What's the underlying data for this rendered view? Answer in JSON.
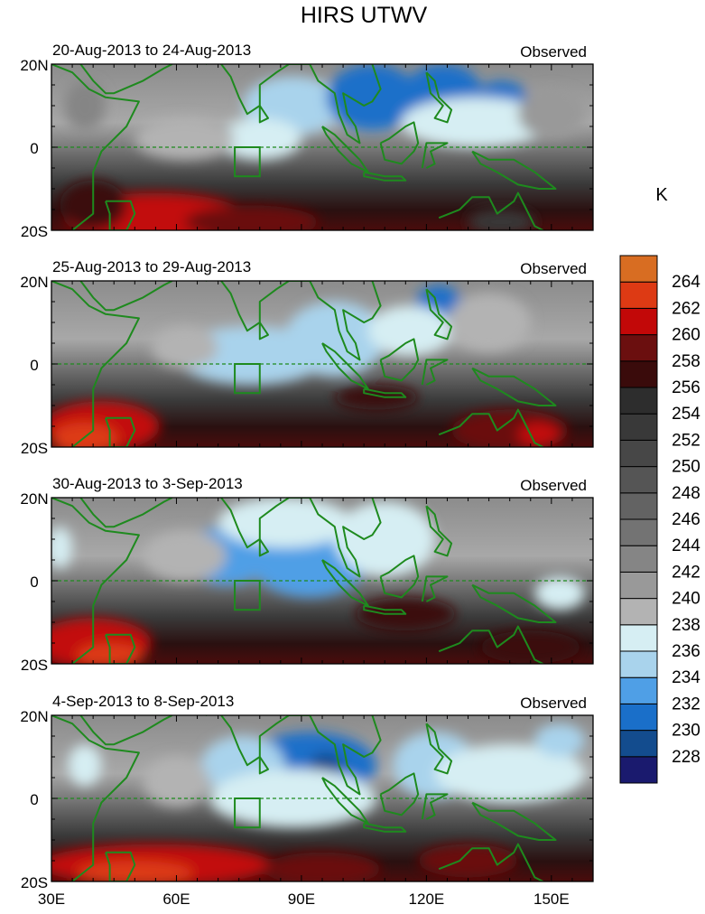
{
  "chart_data": {
    "type": "heatmap",
    "title": "HIRS UTWV",
    "units": "K",
    "panels": [
      {
        "period": "20-Aug-2013 to 24-Aug-2013",
        "label": "Observed",
        "blobs": [
          {
            "lon": 88,
            "lat": 10,
            "rx": 12,
            "ry": 7,
            "v": 234
          },
          {
            "lon": 107,
            "lat": 12,
            "rx": 11,
            "ry": 8,
            "v": 231
          },
          {
            "lon": 124,
            "lat": 14,
            "rx": 9,
            "ry": 6,
            "v": 230
          },
          {
            "lon": 138,
            "lat": 12,
            "rx": 6,
            "ry": 4,
            "v": 230
          },
          {
            "lon": 80,
            "lat": 2,
            "rx": 10,
            "ry": 5,
            "v": 236
          },
          {
            "lon": 62,
            "lat": 2,
            "rx": 12,
            "ry": 5,
            "v": 238
          },
          {
            "lon": 132,
            "lat": 6,
            "rx": 18,
            "ry": 6,
            "v": 236
          },
          {
            "lon": 38,
            "lat": 10,
            "rx": 5,
            "ry": 6,
            "v": 242
          },
          {
            "lon": 150,
            "lat": 8,
            "rx": 8,
            "ry": 6,
            "v": 240
          }
        ],
        "south": [
          {
            "lon": 55,
            "lat": -17,
            "rx": 22,
            "ry": 6,
            "v": 260
          },
          {
            "lon": 78,
            "lat": -18,
            "rx": 16,
            "ry": 4,
            "v": 258
          },
          {
            "lon": 40,
            "lat": -14,
            "rx": 8,
            "ry": 6,
            "v": 256
          },
          {
            "lon": 138,
            "lat": -18,
            "rx": 8,
            "ry": 3,
            "v": 252
          }
        ]
      },
      {
        "period": "25-Aug-2013 to 29-Aug-2013",
        "label": "Observed",
        "blobs": [
          {
            "lon": 78,
            "lat": 2,
            "rx": 18,
            "ry": 7,
            "v": 234
          },
          {
            "lon": 98,
            "lat": 6,
            "rx": 12,
            "ry": 9,
            "v": 234
          },
          {
            "lon": 123,
            "lat": 13,
            "rx": 6,
            "ry": 6,
            "v": 231
          },
          {
            "lon": 116,
            "lat": 8,
            "rx": 10,
            "ry": 6,
            "v": 236
          },
          {
            "lon": 62,
            "lat": 4,
            "rx": 8,
            "ry": 5,
            "v": 238
          },
          {
            "lon": 135,
            "lat": 10,
            "rx": 10,
            "ry": 7,
            "v": 238
          }
        ],
        "south": [
          {
            "lon": 42,
            "lat": -15,
            "rx": 14,
            "ry": 6,
            "v": 260
          },
          {
            "lon": 38,
            "lat": -18,
            "rx": 8,
            "ry": 4,
            "v": 262
          },
          {
            "lon": 108,
            "lat": -8,
            "rx": 10,
            "ry": 3,
            "v": 256
          },
          {
            "lon": 140,
            "lat": -16,
            "rx": 14,
            "ry": 5,
            "v": 258
          },
          {
            "lon": 147,
            "lat": -17,
            "rx": 5,
            "ry": 3,
            "v": 260
          }
        ]
      },
      {
        "period": "30-Aug-2013 to 3-Sep-2013",
        "label": "Observed",
        "blobs": [
          {
            "lon": 72,
            "lat": 6,
            "rx": 10,
            "ry": 7,
            "v": 233
          },
          {
            "lon": 92,
            "lat": 5,
            "rx": 14,
            "ry": 9,
            "v": 232
          },
          {
            "lon": 86,
            "lat": 14,
            "rx": 16,
            "ry": 6,
            "v": 236
          },
          {
            "lon": 110,
            "lat": 10,
            "rx": 12,
            "ry": 9,
            "v": 236
          },
          {
            "lon": 62,
            "lat": 6,
            "rx": 10,
            "ry": 6,
            "v": 238
          },
          {
            "lon": 32,
            "lat": 8,
            "rx": 3,
            "ry": 5,
            "v": 236
          },
          {
            "lon": 152,
            "lat": -3,
            "rx": 6,
            "ry": 4,
            "v": 236
          }
        ],
        "south": [
          {
            "lon": 40,
            "lat": -15,
            "rx": 14,
            "ry": 6,
            "v": 260
          },
          {
            "lon": 44,
            "lat": -18,
            "rx": 8,
            "ry": 3,
            "v": 262
          },
          {
            "lon": 115,
            "lat": -8,
            "rx": 12,
            "ry": 4,
            "v": 256
          },
          {
            "lon": 145,
            "lat": -16,
            "rx": 12,
            "ry": 4,
            "v": 256
          }
        ]
      },
      {
        "period": "4-Sep-2013 to 8-Sep-2013",
        "label": "Observed",
        "blobs": [
          {
            "lon": 92,
            "lat": 8,
            "rx": 16,
            "ry": 8,
            "v": 231
          },
          {
            "lon": 96,
            "lat": 8,
            "rx": 4,
            "ry": 3,
            "v": 228
          },
          {
            "lon": 76,
            "lat": 8,
            "rx": 10,
            "ry": 7,
            "v": 234
          },
          {
            "lon": 88,
            "lat": 0,
            "rx": 20,
            "ry": 7,
            "v": 236
          },
          {
            "lon": 122,
            "lat": 8,
            "rx": 10,
            "ry": 8,
            "v": 234
          },
          {
            "lon": 140,
            "lat": 6,
            "rx": 18,
            "ry": 7,
            "v": 236
          },
          {
            "lon": 38,
            "lat": 8,
            "rx": 4,
            "ry": 5,
            "v": 236
          },
          {
            "lon": 152,
            "lat": 14,
            "rx": 6,
            "ry": 4,
            "v": 234
          },
          {
            "lon": 60,
            "lat": 4,
            "rx": 8,
            "ry": 6,
            "v": 238
          }
        ],
        "south": [
          {
            "lon": 55,
            "lat": -16,
            "rx": 28,
            "ry": 5,
            "v": 260
          },
          {
            "lon": 50,
            "lat": -18,
            "rx": 14,
            "ry": 3,
            "v": 262
          },
          {
            "lon": 95,
            "lat": -17,
            "rx": 14,
            "ry": 4,
            "v": 258
          },
          {
            "lon": 130,
            "lat": -15,
            "rx": 12,
            "ry": 4,
            "v": 258
          }
        ]
      }
    ],
    "x_range": [
      30,
      160
    ],
    "y_range": [
      -20,
      20
    ],
    "x_ticks": [
      {
        "v": 30,
        "label": "30E"
      },
      {
        "v": 60,
        "label": "60E"
      },
      {
        "v": 90,
        "label": "90E"
      },
      {
        "v": 120,
        "label": "120E"
      },
      {
        "v": 150,
        "label": "150E"
      }
    ],
    "y_ticks": [
      {
        "v": 20,
        "label": "20N"
      },
      {
        "v": 0,
        "label": "0"
      },
      {
        "v": -20,
        "label": "20S"
      }
    ],
    "box_region": {
      "lon": [
        74,
        80
      ],
      "lat": [
        -7,
        0
      ]
    },
    "colorbar": {
      "levels": [
        228,
        230,
        232,
        234,
        236,
        238,
        240,
        242,
        244,
        246,
        248,
        250,
        252,
        254,
        256,
        258,
        260,
        262,
        264
      ],
      "colors": [
        "#1a1a6e",
        "#134c8e",
        "#1a6fc9",
        "#4f9fe6",
        "#a9d3ec",
        "#d6eef3",
        "#b3b3b3",
        "#999999",
        "#858585",
        "#737373",
        "#636363",
        "#555555",
        "#474747",
        "#393939",
        "#2d2d2d",
        "#3a0b0b",
        "#6b0f0f",
        "#c20808",
        "#dd3a14",
        "#d86d22"
      ]
    }
  }
}
